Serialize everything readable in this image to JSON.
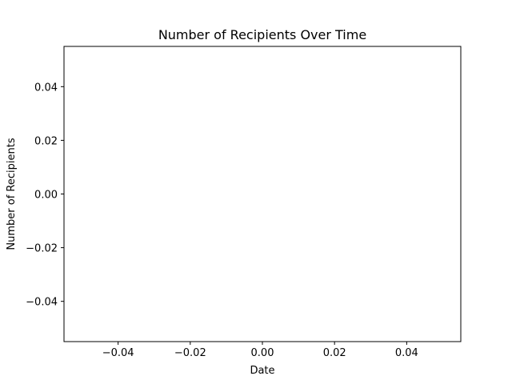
{
  "chart_data": {
    "type": "line",
    "title": "Number of Recipients Over Time",
    "xlabel": "Date",
    "ylabel": "Number of Recipients",
    "x": [],
    "series": [],
    "xlim": [
      -0.055,
      0.055
    ],
    "ylim": [
      -0.055,
      0.055
    ],
    "x_ticks": [
      "−0.04",
      "−0.02",
      "0.00",
      "0.02",
      "0.04"
    ],
    "x_tick_values": [
      -0.04,
      -0.02,
      0.0,
      0.02,
      0.04
    ],
    "y_ticks": [
      "−0.04",
      "−0.02",
      "0.00",
      "0.02",
      "0.04"
    ],
    "y_tick_values": [
      -0.04,
      -0.02,
      0.0,
      0.02,
      0.04
    ],
    "grid": false,
    "legend": "none"
  }
}
